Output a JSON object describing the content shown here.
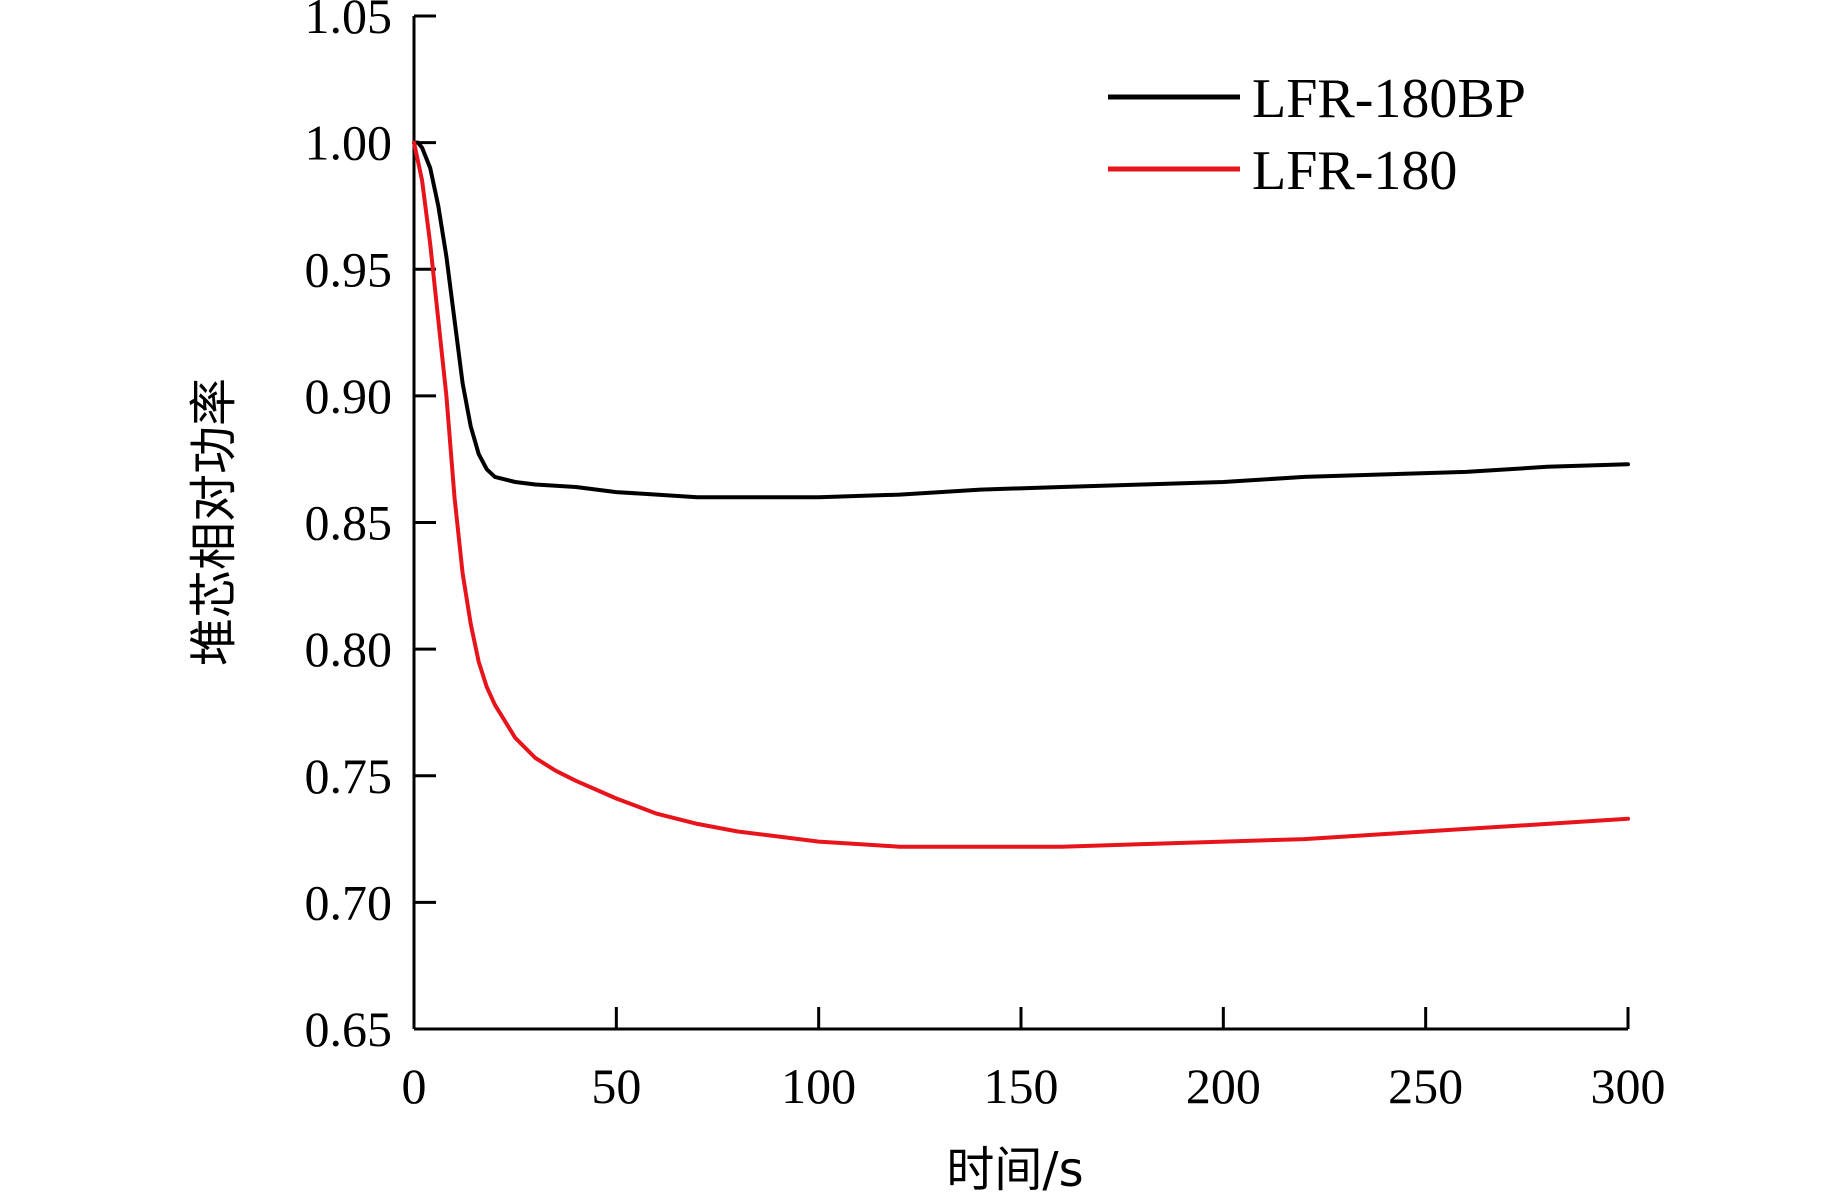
{
  "chart_data": {
    "type": "line",
    "title": "",
    "xlabel": "时间/s",
    "ylabel": "堆芯相对功率",
    "xlim": [
      0,
      300
    ],
    "ylim": [
      0.65,
      1.05
    ],
    "xticks": [
      "0",
      "50",
      "100",
      "150",
      "200",
      "250",
      "300"
    ],
    "yticks": [
      "0.65",
      "0.70",
      "0.75",
      "0.80",
      "0.85",
      "0.90",
      "0.95",
      "1.00",
      "1.05"
    ],
    "grid": false,
    "legend_position": "top-right",
    "series": [
      {
        "name": "LFR-180BP",
        "color": "#000000",
        "x": [
          0,
          1,
          2,
          4,
          6,
          8,
          10,
          12,
          14,
          16,
          18,
          20,
          25,
          30,
          40,
          50,
          60,
          70,
          80,
          90,
          100,
          120,
          140,
          160,
          180,
          200,
          220,
          240,
          260,
          280,
          300
        ],
        "y": [
          1.0,
          1.0,
          0.998,
          0.99,
          0.975,
          0.955,
          0.93,
          0.905,
          0.888,
          0.877,
          0.871,
          0.868,
          0.866,
          0.865,
          0.864,
          0.862,
          0.861,
          0.86,
          0.86,
          0.86,
          0.86,
          0.861,
          0.863,
          0.864,
          0.865,
          0.866,
          0.868,
          0.869,
          0.87,
          0.872,
          0.873
        ]
      },
      {
        "name": "LFR-180",
        "color": "#e8141c",
        "x": [
          0,
          2,
          4,
          6,
          8,
          10,
          12,
          14,
          16,
          18,
          20,
          25,
          30,
          35,
          40,
          50,
          60,
          70,
          80,
          90,
          100,
          110,
          120,
          130,
          140,
          150,
          160,
          180,
          200,
          220,
          240,
          260,
          280,
          300
        ],
        "y": [
          1.0,
          0.985,
          0.96,
          0.93,
          0.9,
          0.86,
          0.83,
          0.81,
          0.795,
          0.785,
          0.778,
          0.765,
          0.757,
          0.752,
          0.748,
          0.741,
          0.735,
          0.731,
          0.728,
          0.726,
          0.724,
          0.723,
          0.722,
          0.722,
          0.722,
          0.722,
          0.722,
          0.723,
          0.724,
          0.725,
          0.727,
          0.729,
          0.731,
          0.733
        ]
      }
    ]
  }
}
